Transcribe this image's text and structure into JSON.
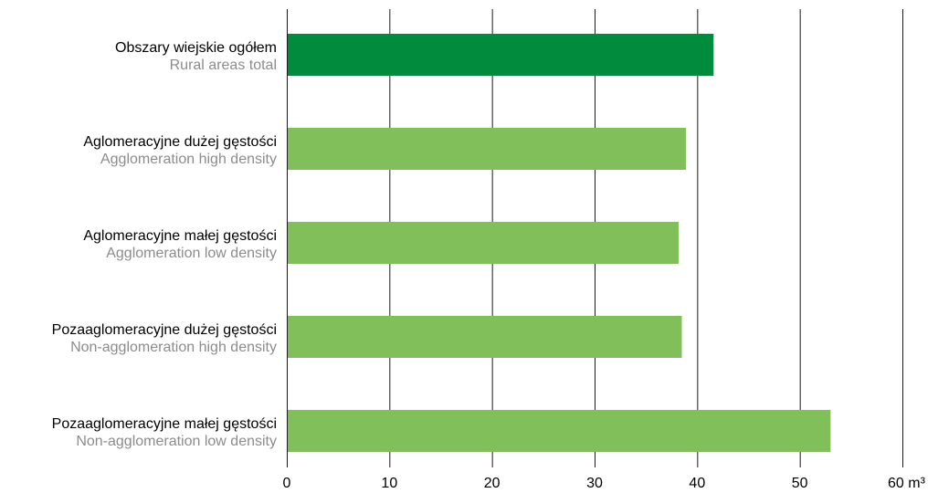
{
  "chart_data": {
    "type": "bar",
    "orientation": "horizontal",
    "categories": [
      {
        "label_pl": "Obszary wiejskie ogółem",
        "label_en": "Rural areas total"
      },
      {
        "label_pl": "Aglomeracyjne dużej gęstości",
        "label_en": "Agglomeration high density"
      },
      {
        "label_pl": "Aglomeracyjne małej gęstości",
        "label_en": "Agglomeration low density"
      },
      {
        "label_pl": "Pozaaglomeracyjne dużej gęstości",
        "label_en": "Non-agglomeration high density"
      },
      {
        "label_pl": "Pozaaglomeracyjne małej gęstości",
        "label_en": "Non-agglomeration low density"
      }
    ],
    "values": [
      41.6,
      38.9,
      38.2,
      38.5,
      53.0
    ],
    "highlight_index": 0,
    "xlim": [
      0,
      60
    ],
    "x_ticks": [
      "0",
      "10",
      "20",
      "30",
      "40",
      "50",
      "60 m³"
    ],
    "grid": true,
    "colors": {
      "highlight": "#008c3c",
      "bar": "#80bf5a",
      "gridline": "#1a1a1a",
      "label_primary": "#000000",
      "label_secondary": "#8c8c8c"
    }
  }
}
